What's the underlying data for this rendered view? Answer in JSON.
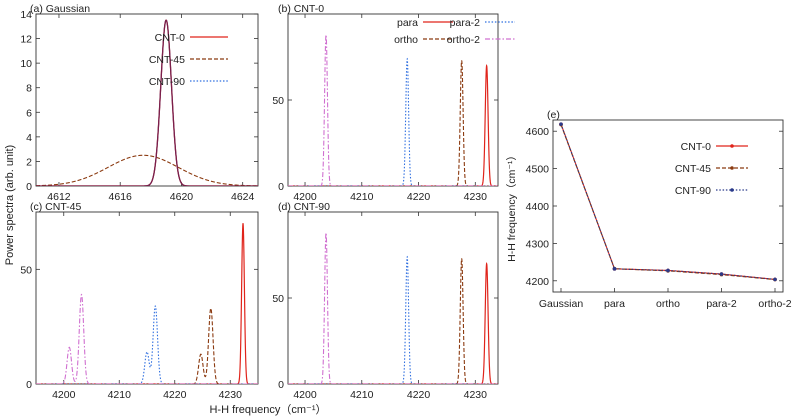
{
  "figure": {
    "shared_ylabel": "Power spectra (arb. unit)",
    "shared_xlabel": "H-H frequency（cm⁻¹）"
  },
  "colors": {
    "red": "#e0241b",
    "brown": "#8b3a10",
    "blue": "#2f6fe0",
    "pink": "#d070d0",
    "gray": "#9a9a9a",
    "dark": "#7a1f4a",
    "navy": "#2a3a8a"
  },
  "chart_data": [
    {
      "id": "a",
      "panel_label": "(a) Gaussian",
      "type": "line",
      "xlim": [
        4610.5,
        4625
      ],
      "ylim": [
        0,
        14
      ],
      "xticks": [
        4612,
        4616,
        4620,
        4624
      ],
      "yticks": [
        0,
        2,
        4,
        6,
        8,
        10,
        12,
        14
      ],
      "legend_position": "top-right",
      "series": [
        {
          "name": "CNT-0",
          "style": "solid",
          "color": "red",
          "peaks": [
            [
              4619.0,
              13.5,
              0.35
            ]
          ]
        },
        {
          "name": "CNT-45",
          "style": "dashed",
          "color": "brown",
          "peaks": [
            [
              4617.5,
              2.5,
              2.3
            ]
          ]
        },
        {
          "name": "CNT-90",
          "style": "dotted",
          "color": "blue",
          "peaks": [
            [
              4619.0,
              13.5,
              0.35
            ]
          ]
        }
      ]
    },
    {
      "id": "b",
      "panel_label": "(b) CNT-0",
      "type": "line",
      "xlim": [
        4197,
        4234
      ],
      "ylim": [
        0,
        100
      ],
      "xticks": [
        4200,
        4210,
        4220,
        4230
      ],
      "yticks": [
        0,
        50
      ],
      "legend_position": "top",
      "series": [
        {
          "name": "para",
          "style": "solid",
          "color": "red",
          "peaks": [
            [
              4232.0,
              70,
              0.25
            ]
          ]
        },
        {
          "name": "ortho",
          "style": "dashed",
          "color": "brown",
          "peaks": [
            [
              4227.6,
              73,
              0.25
            ]
          ]
        },
        {
          "name": "para-2",
          "style": "dotted",
          "color": "blue",
          "peaks": [
            [
              4218.0,
              74,
              0.25
            ]
          ]
        },
        {
          "name": "ortho-2",
          "style": "dashdot",
          "color": "pink",
          "peaks": [
            [
              4203.7,
              88,
              0.25
            ]
          ]
        }
      ]
    },
    {
      "id": "c",
      "panel_label": "(c) CNT-45",
      "type": "line",
      "xlim": [
        4195,
        4235
      ],
      "ylim": [
        0,
        75
      ],
      "xticks": [
        4200,
        4210,
        4220,
        4230
      ],
      "yticks": [
        0,
        50
      ],
      "series": [
        {
          "name": "",
          "style": "solid",
          "color": "red",
          "peaks": [
            [
              4232.3,
              70,
              0.25
            ]
          ]
        },
        {
          "name": "",
          "style": "dashed",
          "color": "brown",
          "peaks": [
            [
              4226.5,
              33,
              0.4
            ],
            [
              4224.7,
              13,
              0.4
            ]
          ]
        },
        {
          "name": "",
          "style": "dotted",
          "color": "blue",
          "peaks": [
            [
              4216.5,
              34,
              0.4
            ],
            [
              4215.0,
              14,
              0.4
            ]
          ]
        },
        {
          "name": "",
          "style": "dashdot",
          "color": "pink",
          "peaks": [
            [
              4203.2,
              39,
              0.4
            ],
            [
              4201.0,
              16,
              0.4
            ]
          ]
        }
      ]
    },
    {
      "id": "d",
      "panel_label": "(d) CNT-90",
      "type": "line",
      "xlim": [
        4197,
        4234
      ],
      "ylim": [
        0,
        100
      ],
      "xticks": [
        4200,
        4210,
        4220,
        4230
      ],
      "yticks": [
        0,
        50
      ],
      "series": [
        {
          "name": "",
          "style": "solid",
          "color": "red",
          "peaks": [
            [
              4232.0,
              70,
              0.25
            ]
          ]
        },
        {
          "name": "",
          "style": "dashed",
          "color": "brown",
          "peaks": [
            [
              4227.6,
              73,
              0.25
            ]
          ]
        },
        {
          "name": "",
          "style": "dotted",
          "color": "blue",
          "peaks": [
            [
              4218.0,
              74,
              0.25
            ]
          ]
        },
        {
          "name": "",
          "style": "dashdot",
          "color": "pink",
          "peaks": [
            [
              4203.7,
              88,
              0.25
            ]
          ]
        }
      ]
    },
    {
      "id": "e",
      "panel_label": "(e)",
      "type": "line",
      "categories": [
        "Gaussian",
        "para",
        "ortho",
        "para-2",
        "ortho-2"
      ],
      "ylabel": "H-H frequency（cm⁻¹）",
      "ylim": [
        4170,
        4630
      ],
      "yticks": [
        4200,
        4300,
        4400,
        4500,
        4600
      ],
      "legend_position": "right",
      "series": [
        {
          "name": "CNT-0",
          "style": "solid",
          "color": "red",
          "values": [
            4619,
            4232,
            4227.6,
            4218,
            4203.7
          ]
        },
        {
          "name": "CNT-45",
          "style": "dashed",
          "color": "brown",
          "values": [
            4617.5,
            4232.3,
            4226.5,
            4216.5,
            4203.2
          ]
        },
        {
          "name": "CNT-90",
          "style": "dotted",
          "color": "blue",
          "values": [
            4619,
            4232,
            4227.6,
            4218,
            4203.7
          ]
        }
      ]
    }
  ]
}
